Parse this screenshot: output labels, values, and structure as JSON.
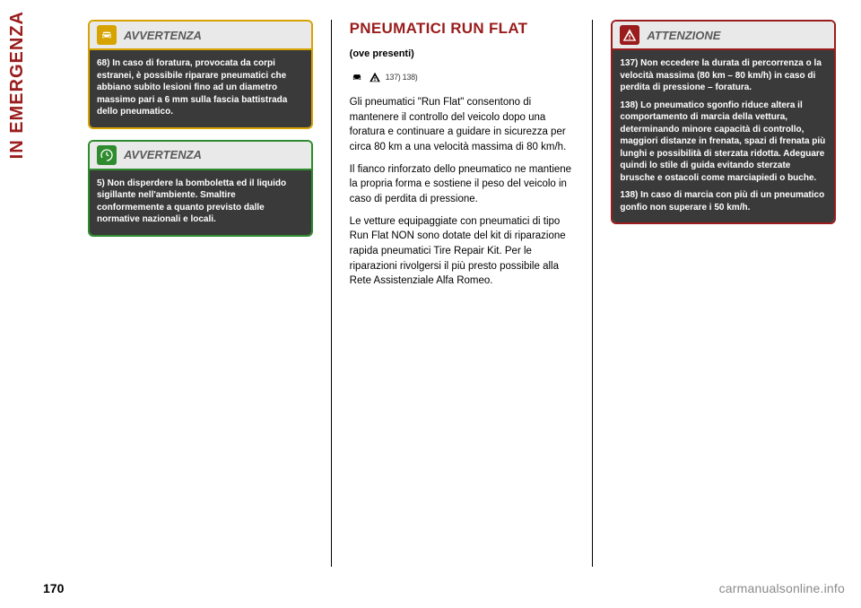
{
  "page": {
    "spine_label": "IN EMERGENZA",
    "spine_color": "#9a1c1c",
    "page_number": "170",
    "watermark": "carmanualsonline.info"
  },
  "col_left": {
    "box1": {
      "head_label": "AVVERTENZA",
      "border_color": "#d6a300",
      "icon_name": "car-warning-icon",
      "paragraphs": [
        "68) In caso di foratura, provocata da corpi estranei, è possibile riparare pneumatici che abbiano subito lesioni fino ad un diametro massimo pari a 6 mm sulla fascia battistrada dello pneumatico."
      ]
    },
    "box2": {
      "head_label": "AVVERTENZA",
      "border_color": "#2e8b2e",
      "icon_name": "recycle-icon",
      "paragraphs": [
        "5) Non disperdere la bomboletta ed il liquido sigillante nell'ambiente. Smaltire conformemente a quanto previsto dalle normative nazionali e locali."
      ]
    }
  },
  "col_center": {
    "title": "PNEUMATICI RUN FLAT",
    "title_color": "#9a1c1c",
    "subnote": "(ove presenti)",
    "icon_row": {
      "icon1": "car-icon",
      "icon2": "warning-triangle-icon",
      "icon_nums": "137) 138)"
    },
    "paragraphs": [
      "Gli pneumatici \"Run Flat\" consentono di mantenere il controllo del veicolo dopo una foratura e continuare a guidare in sicurezza per circa 80 km a una velocità massima di 80 km/h.",
      "Il fianco rinforzato dello pneumatico ne mantiene la propria forma e sostiene il peso del veicolo in caso di perdita di pressione.",
      "Le vetture equipaggiate con pneumatici di tipo Run Flat NON sono dotate del kit di riparazione rapida pneumatici Tire Repair Kit. Per le riparazioni rivolgersi il più presto possibile alla Rete Assistenziale Alfa Romeo."
    ]
  },
  "col_right": {
    "box1": {
      "head_label": "ATTENZIONE",
      "border_color": "#9a1c1c",
      "icon_name": "warning-triangle-icon",
      "paragraphs": [
        "137) Non eccedere la durata di percorrenza o la velocità massima (80 km – 80 km/h) in caso di perdita di pressione – foratura.",
        "138) Lo pneumatico sgonfio riduce altera il comportamento di marcia della vettura, determinando minore capacità di controllo, maggiori distanze in frenata, spazi di frenata più lunghi e possibilità di sterzata ridotta. Adeguare quindi lo stile di guida evitando sterzate brusche e ostacoli come marciapiedi o buche.",
        "138) In caso di marcia con più di un pneumatico gonfio non superare i 50 km/h."
      ]
    }
  }
}
